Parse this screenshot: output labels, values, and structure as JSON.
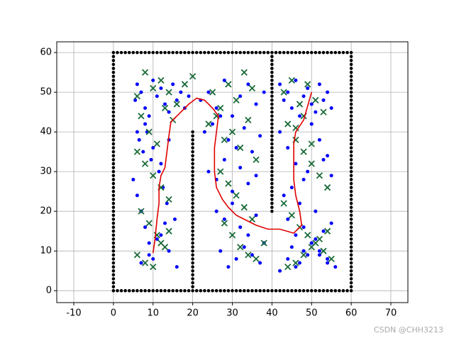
{
  "chart_data": {
    "type": "scatter",
    "xlim": [
      -14.3,
      74.3
    ],
    "ylim": [
      -3,
      62.7
    ],
    "xticks": [
      -10,
      0,
      10,
      20,
      30,
      40,
      50,
      60,
      70
    ],
    "yticks": [
      0,
      10,
      20,
      30,
      40,
      50,
      60
    ],
    "grid": true,
    "watermark": "CSDN @CHH3213",
    "series": [
      {
        "color": "#000000",
        "marker": "dot",
        "x": [
          0,
          1,
          2,
          3,
          4,
          5,
          6,
          7,
          8,
          9,
          10,
          11,
          12,
          13,
          14,
          15,
          16,
          17,
          18,
          19,
          20,
          21,
          22,
          23,
          24,
          25,
          26,
          27,
          28,
          29,
          30,
          31,
          32,
          33,
          34,
          35,
          36,
          37,
          38,
          39,
          40,
          41,
          42,
          43,
          44,
          45,
          46,
          47,
          48,
          49,
          50,
          51,
          52,
          53,
          54,
          55,
          56,
          57,
          58,
          59,
          60
        ],
        "y": [
          0,
          0,
          0,
          0,
          0,
          0,
          0,
          0,
          0,
          0,
          0,
          0,
          0,
          0,
          0,
          0,
          0,
          0,
          0,
          0,
          0,
          0,
          0,
          0,
          0,
          0,
          0,
          0,
          0,
          0,
          0,
          0,
          0,
          0,
          0,
          0,
          0,
          0,
          0,
          0,
          0,
          0,
          0,
          0,
          0,
          0,
          0,
          0,
          0,
          0,
          0,
          0,
          0,
          0,
          0,
          0,
          0,
          0,
          0,
          0,
          0
        ]
      },
      {
        "color": "#000000",
        "marker": "dot",
        "x": [
          0,
          1,
          2,
          3,
          4,
          5,
          6,
          7,
          8,
          9,
          10,
          11,
          12,
          13,
          14,
          15,
          16,
          17,
          18,
          19,
          20,
          21,
          22,
          23,
          24,
          25,
          26,
          27,
          28,
          29,
          30,
          31,
          32,
          33,
          34,
          35,
          36,
          37,
          38,
          39,
          40,
          41,
          42,
          43,
          44,
          45,
          46,
          47,
          48,
          49,
          50,
          51,
          52,
          53,
          54,
          55,
          56,
          57,
          58,
          59,
          60
        ],
        "y": [
          60,
          60,
          60,
          60,
          60,
          60,
          60,
          60,
          60,
          60,
          60,
          60,
          60,
          60,
          60,
          60,
          60,
          60,
          60,
          60,
          60,
          60,
          60,
          60,
          60,
          60,
          60,
          60,
          60,
          60,
          60,
          60,
          60,
          60,
          60,
          60,
          60,
          60,
          60,
          60,
          60,
          60,
          60,
          60,
          60,
          60,
          60,
          60,
          60,
          60,
          60,
          60,
          60,
          60,
          60,
          60,
          60,
          60,
          60,
          60,
          60
        ]
      },
      {
        "color": "#000000",
        "marker": "dot",
        "x": [
          0,
          0,
          0,
          0,
          0,
          0,
          0,
          0,
          0,
          0,
          0,
          0,
          0,
          0,
          0,
          0,
          0,
          0,
          0,
          0,
          0,
          0,
          0,
          0,
          0,
          0,
          0,
          0,
          0,
          0,
          0,
          0,
          0,
          0,
          0,
          0,
          0,
          0,
          0,
          0,
          0,
          0,
          0,
          0,
          0,
          0,
          0,
          0,
          0,
          0,
          0,
          0,
          0,
          0,
          0,
          0,
          0,
          0,
          0
        ],
        "y": [
          1,
          2,
          3,
          4,
          5,
          6,
          7,
          8,
          9,
          10,
          11,
          12,
          13,
          14,
          15,
          16,
          17,
          18,
          19,
          20,
          21,
          22,
          23,
          24,
          25,
          26,
          27,
          28,
          29,
          30,
          31,
          32,
          33,
          34,
          35,
          36,
          37,
          38,
          39,
          40,
          41,
          42,
          43,
          44,
          45,
          46,
          47,
          48,
          49,
          50,
          51,
          52,
          53,
          54,
          55,
          56,
          57,
          58,
          59
        ]
      },
      {
        "color": "#000000",
        "marker": "dot",
        "x": [
          60,
          60,
          60,
          60,
          60,
          60,
          60,
          60,
          60,
          60,
          60,
          60,
          60,
          60,
          60,
          60,
          60,
          60,
          60,
          60,
          60,
          60,
          60,
          60,
          60,
          60,
          60,
          60,
          60,
          60,
          60,
          60,
          60,
          60,
          60,
          60,
          60,
          60,
          60,
          60,
          60,
          60,
          60,
          60,
          60,
          60,
          60,
          60,
          60,
          60,
          60,
          60,
          60,
          60,
          60,
          60,
          60,
          60,
          60
        ],
        "y": [
          1,
          2,
          3,
          4,
          5,
          6,
          7,
          8,
          9,
          10,
          11,
          12,
          13,
          14,
          15,
          16,
          17,
          18,
          19,
          20,
          21,
          22,
          23,
          24,
          25,
          26,
          27,
          28,
          29,
          30,
          31,
          32,
          33,
          34,
          35,
          36,
          37,
          38,
          39,
          40,
          41,
          42,
          43,
          44,
          45,
          46,
          47,
          48,
          49,
          50,
          51,
          52,
          53,
          54,
          55,
          56,
          57,
          58,
          59
        ]
      },
      {
        "color": "#000000",
        "marker": "dot",
        "x": [
          20,
          20,
          20,
          20,
          20,
          20,
          20,
          20,
          20,
          20,
          20,
          20,
          20,
          20,
          20,
          20,
          20,
          20,
          20,
          20,
          20,
          20,
          20,
          20,
          20,
          20,
          20,
          20,
          20,
          20,
          20,
          20,
          20,
          20,
          20,
          20,
          20,
          20,
          20,
          20
        ],
        "y": [
          1,
          2,
          3,
          4,
          5,
          6,
          7,
          8,
          9,
          10,
          11,
          12,
          13,
          14,
          15,
          16,
          17,
          18,
          19,
          20,
          21,
          22,
          23,
          24,
          25,
          26,
          27,
          28,
          29,
          30,
          31,
          32,
          33,
          34,
          35,
          36,
          37,
          38,
          39,
          40
        ]
      },
      {
        "color": "#000000",
        "marker": "dot",
        "x": [
          40,
          40,
          40,
          40,
          40,
          40,
          40,
          40,
          40,
          40,
          40,
          40,
          40,
          40,
          40,
          40,
          40,
          40,
          40,
          40,
          40,
          40,
          40,
          40,
          40,
          40,
          40,
          40,
          40,
          40,
          40,
          40,
          40,
          40,
          40,
          40,
          40,
          40,
          40,
          40
        ],
        "y": [
          20,
          21,
          22,
          23,
          24,
          25,
          26,
          27,
          28,
          29,
          30,
          31,
          32,
          33,
          34,
          35,
          36,
          37,
          38,
          39,
          40,
          41,
          42,
          43,
          44,
          45,
          46,
          47,
          48,
          49,
          50,
          51,
          52,
          53,
          54,
          55,
          56,
          57,
          58,
          59
        ]
      },
      {
        "color": "#0000ff",
        "marker": "dot",
        "x": [
          5.5,
          6,
          7,
          8,
          9,
          10,
          11,
          12,
          13,
          14,
          15,
          16,
          17,
          18,
          19,
          6.5,
          7.5,
          8.5,
          9.5,
          11.5,
          12.5,
          13.5,
          15.5,
          5,
          6,
          7,
          8,
          9,
          10,
          12,
          14,
          16,
          6,
          8,
          10,
          12,
          14,
          7,
          9,
          11,
          13,
          22,
          24,
          26,
          28,
          30,
          32,
          34,
          36,
          38,
          23,
          25,
          27,
          29,
          31,
          33,
          35,
          37,
          24,
          26,
          28,
          30,
          32,
          34,
          36,
          26,
          28,
          30,
          32,
          34,
          36,
          38,
          27,
          29,
          31,
          33,
          35,
          37,
          42,
          43,
          44,
          45,
          46,
          47,
          48,
          49,
          50,
          51,
          52,
          53,
          54,
          55,
          42,
          44,
          46,
          48,
          50,
          52,
          54,
          43,
          45,
          47,
          49,
          51,
          53,
          55,
          44,
          46,
          48,
          50,
          52,
          54,
          56,
          45,
          47,
          49,
          51,
          53,
          55,
          42,
          44,
          46,
          48,
          50,
          52,
          54
        ],
        "y": [
          48,
          52,
          50,
          46,
          44,
          53,
          49,
          51,
          47,
          45,
          52,
          48,
          50,
          46,
          49,
          38,
          35,
          40,
          33,
          30,
          26,
          22,
          18,
          28,
          24,
          20,
          16,
          12,
          8,
          14,
          10,
          6,
          40,
          42,
          36,
          32,
          38,
          7,
          9,
          13,
          17,
          48,
          50,
          46,
          53,
          44,
          49,
          52,
          47,
          50,
          40,
          42,
          44,
          38,
          36,
          41,
          35,
          39,
          30,
          28,
          33,
          25,
          31,
          27,
          29,
          20,
          18,
          22,
          16,
          14,
          19,
          12,
          10,
          6,
          8,
          11,
          9,
          7,
          52,
          48,
          50,
          46,
          53,
          44,
          49,
          51,
          47,
          45,
          52,
          48,
          50,
          46,
          40,
          36,
          32,
          28,
          42,
          38,
          34,
          24,
          26,
          22,
          30,
          20,
          33,
          29,
          18,
          14,
          16,
          12,
          10,
          8,
          6,
          11,
          7,
          9,
          13,
          15,
          17,
          5,
          8,
          6,
          10,
          12,
          9,
          7
        ],
        "size": 2.5
      },
      {
        "color": "#1a6b3a",
        "marker": "x",
        "x": [
          6,
          8,
          10,
          12,
          14,
          16,
          18,
          20,
          7,
          9,
          11,
          13,
          15,
          6,
          8,
          10,
          12,
          14,
          7,
          9,
          11,
          13,
          6,
          8,
          10,
          12,
          14,
          25,
          27,
          29,
          31,
          33,
          35,
          24,
          26,
          28,
          30,
          32,
          34,
          36,
          27,
          29,
          31,
          33,
          35,
          28,
          30,
          32,
          34,
          36,
          38,
          43,
          45,
          47,
          49,
          51,
          53,
          44,
          46,
          48,
          50,
          52,
          54,
          43,
          45,
          47,
          49,
          51,
          53,
          55,
          44,
          46,
          48,
          50,
          52,
          54,
          46,
          48,
          50
        ],
        "y": [
          49,
          55,
          51,
          53,
          50,
          47,
          52,
          54,
          44,
          40,
          37,
          46,
          43,
          35,
          32,
          29,
          26,
          23,
          20,
          17,
          14,
          11,
          9,
          7,
          6,
          12,
          15,
          50,
          46,
          52,
          48,
          55,
          51,
          42,
          44,
          38,
          40,
          36,
          43,
          33,
          30,
          27,
          24,
          21,
          18,
          17,
          14,
          11,
          9,
          8,
          12,
          50,
          53,
          47,
          52,
          48,
          45,
          42,
          38,
          35,
          32,
          29,
          26,
          22,
          19,
          16,
          14,
          12,
          10,
          8,
          6,
          7,
          9,
          11,
          13,
          15,
          41,
          44,
          37
        ]
      }
    ],
    "path": {
      "color": "#e00000",
      "x": [
        10,
        10.5,
        11,
        11.5,
        11.5,
        12,
        13,
        13.5,
        14,
        14.5,
        17,
        19,
        21,
        23,
        25,
        26.5,
        26,
        25.5,
        25.5,
        26,
        27.5,
        29,
        31,
        33,
        36,
        39,
        42,
        45.5,
        47.5,
        47,
        46,
        45.5,
        45.5,
        45.5,
        46,
        48,
        49,
        50
      ],
      "y": [
        9.5,
        13,
        18,
        22,
        26,
        29,
        31,
        35,
        39,
        42.5,
        45,
        47,
        48.5,
        48,
        46,
        44,
        40,
        36,
        30,
        26,
        23,
        21,
        19,
        18,
        16.5,
        15.5,
        15.5,
        14.5,
        16.5,
        20,
        24,
        28,
        32,
        37,
        40,
        43,
        46.5,
        50
      ]
    }
  }
}
